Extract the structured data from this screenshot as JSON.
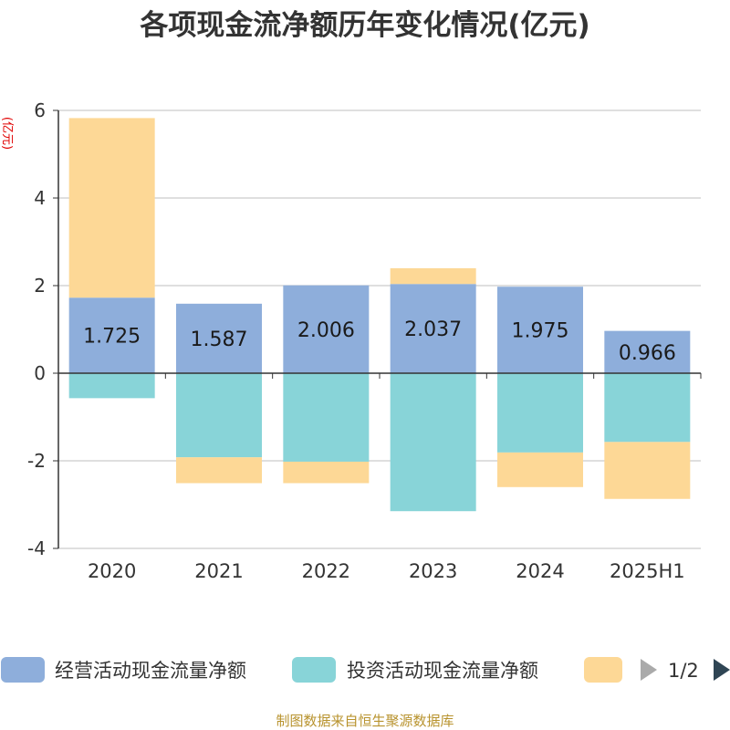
{
  "chart_data": {
    "type": "bar",
    "stacked": true,
    "title": "各项现金流净额历年变化情况(亿元)",
    "ylabel": "(亿元)",
    "xlabel": "",
    "ylim": [
      -4,
      6
    ],
    "yticks": [
      "6",
      "4",
      "2",
      "0",
      "-2",
      "-4"
    ],
    "grid": true,
    "legend_position": "bottom",
    "categories": [
      "2020",
      "2021",
      "2022",
      "2023",
      "2024",
      "2025H1"
    ],
    "series": [
      {
        "name": "经营活动现金流量净额",
        "color": "#8eaedb",
        "label_values": [
          "1.725",
          "1.587",
          "2.006",
          "2.037",
          "1.975",
          "0.966"
        ],
        "values": [
          1.725,
          1.587,
          2.006,
          2.037,
          1.975,
          0.966
        ]
      },
      {
        "name": "投资活动现金流量净额",
        "color": "#88d4d8",
        "values": [
          -0.57,
          -1.92,
          -2.02,
          -3.15,
          -1.81,
          -1.57
        ]
      },
      {
        "name": "",
        "color": "#fdd896",
        "values": [
          4.1,
          -0.59,
          -0.49,
          0.36,
          -0.79,
          -1.3
        ]
      }
    ]
  },
  "legend": {
    "page_indicator": "1/2"
  },
  "source_text": "制图数据来自恒生聚源数据库"
}
